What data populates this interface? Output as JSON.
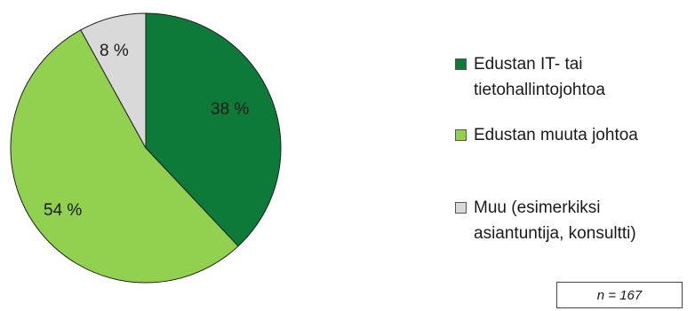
{
  "chart_data": {
    "type": "pie",
    "slices": [
      {
        "label": "Edustan IT- tai tietohallintojohtoa",
        "value": 38,
        "display": "38 %",
        "color": "#0e7a3a"
      },
      {
        "label": "Edustan muuta johtoa",
        "value": 54,
        "display": "54 %",
        "color": "#92d050"
      },
      {
        "label": "Muu (esimerkiksi asiantuntija, konsultti)",
        "value": 8,
        "display": "8 %",
        "color": "#d9d9d9"
      }
    ],
    "legend": {
      "placement": "right",
      "items": [
        {
          "lines": [
            "Edustan IT- tai",
            "tietohallintojohtoa"
          ],
          "color": "#0e7a3a"
        },
        {
          "lines": [
            "Edustan muuta johtoa"
          ],
          "color": "#92d050"
        },
        {
          "lines": [
            "Muu (esimerkiksi",
            "asiantuntija, konsultti)"
          ],
          "color": "#d9d9d9"
        }
      ]
    },
    "note": "n = 167"
  }
}
